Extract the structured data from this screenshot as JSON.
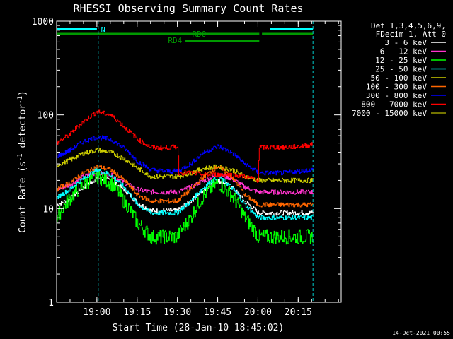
{
  "chart_data": {
    "type": "line",
    "title": "RHESSI Observing Summary Count Rates",
    "xlabel": "Start Time (28-Jan-10 18:45:02)",
    "ylabel_main": "Count Rate (s",
    "ylabel_exp1": "-1",
    "ylabel_mid": " detector",
    "ylabel_exp2": "-1",
    "ylabel_end": ")",
    "y_scale": "log",
    "ylim": [
      1,
      1000
    ],
    "x_range_min": [
      0,
      106
    ],
    "x_ticks": [
      {
        "m": 15,
        "label": "19:00"
      },
      {
        "m": 30,
        "label": "19:15"
      },
      {
        "m": 45,
        "label": "19:30"
      },
      {
        "m": 60,
        "label": "19:45"
      },
      {
        "m": 75,
        "label": "20:00"
      },
      {
        "m": 90,
        "label": "20:15"
      }
    ],
    "y_ticks": [
      {
        "v": 1,
        "label": "1"
      },
      {
        "v": 10,
        "label": "10"
      },
      {
        "v": 100,
        "label": "100"
      },
      {
        "v": 1000,
        "label": "1000"
      }
    ],
    "legend_header": [
      "Det 1,3,4,5,6,9,",
      "FDecim 1, Att 0"
    ],
    "legend_placement": "right",
    "series": [
      {
        "name": "3 - 6 keV",
        "color": "#ffffff",
        "x": [
          0,
          5,
          10,
          15,
          20,
          25,
          30,
          35,
          40,
          45,
          50,
          55,
          60,
          65,
          70,
          75,
          80,
          85,
          90,
          95
        ],
        "values": [
          11,
          12.5,
          17,
          21,
          20,
          16,
          11.5,
          9.5,
          9.5,
          9.5,
          12,
          16,
          20,
          17,
          12,
          9,
          9,
          9,
          9,
          9
        ]
      },
      {
        "name": "6 - 12 keV",
        "color": "#ff33cc",
        "x": [
          0,
          5,
          10,
          15,
          20,
          25,
          30,
          35,
          40,
          45,
          50,
          55,
          60,
          65,
          70,
          75,
          80,
          85,
          90,
          95
        ],
        "values": [
          16,
          18,
          22,
          24,
          23,
          19,
          16,
          15,
          15,
          15,
          17,
          20,
          23,
          21,
          17,
          15,
          15,
          15,
          15,
          15
        ]
      },
      {
        "name": "12 - 25 keV",
        "color": "#00ff00",
        "x": [
          0,
          5,
          10,
          15,
          20,
          25,
          30,
          35,
          40,
          45,
          50,
          55,
          60,
          65,
          70,
          75,
          80,
          85,
          90,
          95
        ],
        "values": [
          8,
          13,
          18,
          22,
          19,
          12,
          7,
          5,
          5,
          5,
          8,
          14,
          19,
          14,
          8,
          5,
          5,
          5,
          5,
          5
        ]
      },
      {
        "name": "25 - 50 keV",
        "color": "#00ffff",
        "x": [
          0,
          5,
          10,
          15,
          20,
          25,
          30,
          35,
          40,
          45,
          50,
          55,
          60,
          65,
          70,
          75,
          80,
          85,
          90,
          95
        ],
        "values": [
          13,
          16,
          21,
          26,
          23,
          17,
          11,
          9,
          9,
          9,
          12,
          17,
          22,
          17,
          11,
          8,
          8,
          8,
          8,
          8
        ]
      },
      {
        "name": "50 - 100 keV",
        "color": "#cccc00",
        "x": [
          0,
          5,
          10,
          15,
          20,
          25,
          30,
          35,
          40,
          45,
          50,
          55,
          60,
          65,
          70,
          75,
          80,
          85,
          90,
          95
        ],
        "values": [
          29,
          33,
          39,
          42,
          40,
          34,
          27,
          22,
          22,
          22,
          24,
          27,
          28,
          26,
          22,
          20,
          20,
          20,
          20,
          20
        ]
      },
      {
        "name": "100 - 300 keV",
        "color": "#ff6600",
        "x": [
          0,
          5,
          10,
          15,
          20,
          25,
          30,
          35,
          40,
          45,
          50,
          55,
          60,
          65,
          70,
          75,
          80,
          85,
          90,
          95
        ],
        "values": [
          16,
          19,
          24,
          28,
          26,
          20,
          14,
          12,
          12,
          12,
          16,
          22,
          28,
          22,
          14,
          11,
          11,
          11,
          11,
          11
        ]
      },
      {
        "name": "300 - 800 keV",
        "color": "#0000ff",
        "x": [
          0,
          5,
          10,
          15,
          20,
          25,
          30,
          35,
          40,
          45,
          50,
          55,
          60,
          65,
          70,
          75,
          80,
          85,
          90,
          95
        ],
        "values": [
          36,
          42,
          52,
          58,
          55,
          44,
          32,
          26,
          25,
          25,
          30,
          40,
          46,
          40,
          30,
          24,
          24,
          24,
          25,
          26
        ]
      },
      {
        "name": "800 - 7000 keV",
        "color": "#ff0000",
        "x": [
          0,
          5,
          10,
          15,
          20,
          25,
          30,
          35,
          40,
          45,
          45.5,
          50,
          55,
          60,
          65,
          70,
          75,
          75.5,
          80,
          85,
          90,
          95
        ],
        "values": [
          50,
          62,
          85,
          108,
          100,
          75,
          55,
          45,
          44,
          46,
          24,
          24,
          23,
          23,
          23,
          22,
          20,
          45,
          45,
          45,
          46,
          48
        ]
      },
      {
        "name": "7000 - 15000 keV",
        "color": "#999900",
        "x": [],
        "values": []
      }
    ],
    "annotations": {
      "night_label": "N",
      "saa_rd0": "RD0",
      "saa_rd4": "RD4",
      "night_bars": [
        [
          0,
          15
        ],
        [
          79.5,
          95.5
        ]
      ],
      "rd0_bars": [
        [
          0,
          75.5
        ],
        [
          76.5,
          95.5
        ]
      ],
      "rd4_bar": [
        48,
        75.5
      ],
      "dashed_markers": [
        15.5,
        95.5
      ],
      "solid_markers": [
        79.5
      ]
    },
    "colors": {
      "axis": "#ffffff",
      "night_bar": "#00ffff",
      "saa_bar": "#009900",
      "marker_line": "#00cccc"
    },
    "timestamp": "14-Oct-2021 00:55"
  }
}
